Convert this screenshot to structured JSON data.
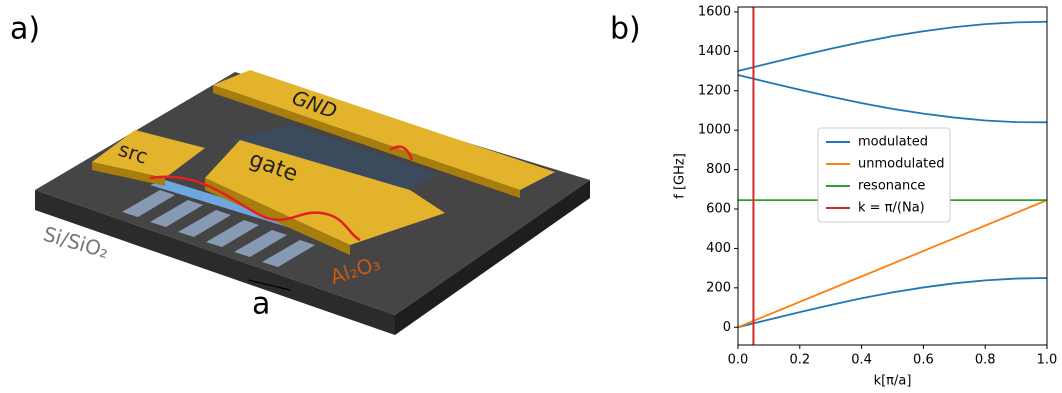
{
  "panels": [
    "a)",
    "b)"
  ],
  "illustration": {
    "labels": {
      "gnd": "GND",
      "src": "src",
      "gate": "gate",
      "substrate": "Si/SiO₂",
      "oxide": "Al₂O₃",
      "period": "a"
    }
  },
  "chart_data": {
    "type": "line",
    "xlabel": "k[π/a]",
    "ylabel": "f [GHz]",
    "xlim": [
      0,
      1
    ],
    "ylim": [
      -90,
      1625
    ],
    "xticks": [
      {
        "value": 0,
        "label": "0.0"
      },
      {
        "value": 0.2,
        "label": "0.2"
      },
      {
        "value": 0.4,
        "label": "0.4"
      },
      {
        "value": 0.6,
        "label": "0.6"
      },
      {
        "value": 0.8,
        "label": "0.8"
      },
      {
        "value": 1,
        "label": "1.0"
      }
    ],
    "yticks": [
      0,
      200,
      400,
      600,
      800,
      1000,
      1200,
      1400,
      1600
    ],
    "legend": "center",
    "series": [
      {
        "name": "modulated",
        "color": "#1f77b4",
        "x": [
          0,
          0.1,
          0.2,
          0.3,
          0.4,
          0.5,
          0.6,
          0.7,
          0.8,
          0.9,
          1,
          null,
          0,
          0.1,
          0.2,
          0.3,
          0.4,
          0.5,
          0.6,
          0.7,
          0.8,
          0.9,
          1,
          null,
          0,
          0.1,
          0.2,
          0.3,
          0.4,
          0.5,
          0.6,
          0.7,
          0.8,
          0.9,
          1
        ],
        "values": [
          0,
          39,
          77,
          113,
          147,
          177,
          202,
          223,
          238,
          247,
          250,
          null,
          1280,
          1242,
          1205,
          1170,
          1137,
          1108,
          1084,
          1064,
          1049,
          1041,
          1040,
          null,
          1300,
          1339,
          1377,
          1413,
          1447,
          1477,
          1502,
          1523,
          1538,
          1547,
          1550
        ]
      },
      {
        "name": "unmodulated",
        "color": "#ff7f0e",
        "x": [
          0,
          1
        ],
        "values": [
          0,
          645
        ]
      },
      {
        "name": "resonance",
        "color": "#2ca02c",
        "x": [
          0,
          1
        ],
        "values": [
          645,
          645
        ]
      }
    ],
    "vlines": [
      {
        "name": "k = π/(Na)",
        "color": "#d62728",
        "x": 0.05
      }
    ]
  }
}
